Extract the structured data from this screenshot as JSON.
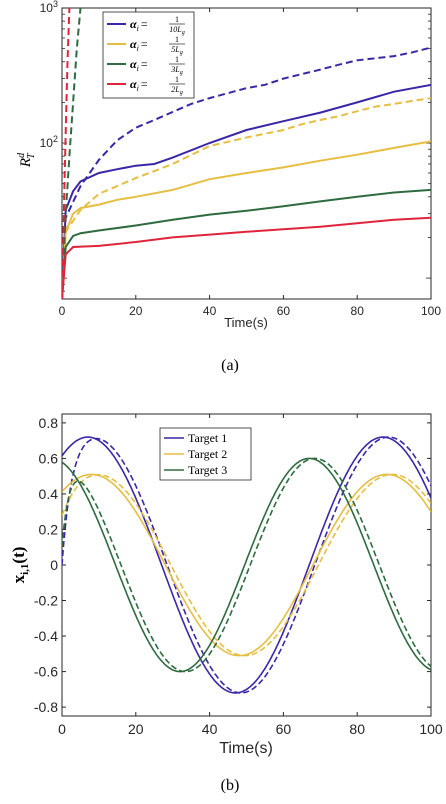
{
  "chart_data": [
    {
      "type": "line",
      "caption": "(a)",
      "xlabel": "Time(s)",
      "ylabel": "R_T^d",
      "yscale": "log",
      "xlim": [
        0,
        100
      ],
      "ylim": [
        7,
        1000
      ],
      "xticks": [
        0,
        20,
        40,
        60,
        80,
        100
      ],
      "yticks": [
        {
          "value": 100,
          "base": "10",
          "exp": "2"
        },
        {
          "value": 1000,
          "base": "10",
          "exp": "3"
        }
      ],
      "legend_position": "top-left",
      "series": [
        {
          "name": "α_i = 1/(10 L_g)",
          "legend": {
            "alpha": "α",
            "sub": "i",
            "eq": "=",
            "num": "1",
            "den": "10L",
            "densub": "g"
          },
          "color": "#3B26A8",
          "solid": [
            [
              0,
              7
            ],
            [
              1,
              32
            ],
            [
              3,
              44
            ],
            [
              5,
              52
            ],
            [
              10,
              60
            ],
            [
              15,
              64
            ],
            [
              20,
              68
            ],
            [
              25,
              70
            ],
            [
              30,
              78
            ],
            [
              40,
              100
            ],
            [
              50,
              125
            ],
            [
              60,
              145
            ],
            [
              70,
              168
            ],
            [
              80,
              200
            ],
            [
              90,
              240
            ],
            [
              100,
              270
            ]
          ],
          "dashed": [
            [
              0,
              7
            ],
            [
              1,
              28
            ],
            [
              5,
              48
            ],
            [
              10,
              75
            ],
            [
              15,
              105
            ],
            [
              20,
              130
            ],
            [
              25,
              148
            ],
            [
              30,
              170
            ],
            [
              35,
              195
            ],
            [
              40,
              215
            ],
            [
              50,
              255
            ],
            [
              55,
              270
            ],
            [
              60,
              300
            ],
            [
              70,
              350
            ],
            [
              75,
              380
            ],
            [
              80,
              410
            ],
            [
              90,
              440
            ],
            [
              95,
              470
            ],
            [
              100,
              510
            ]
          ]
        },
        {
          "name": "α_i = 1/(5 L_g)",
          "legend": {
            "alpha": "α",
            "sub": "i",
            "eq": "=",
            "num": "1",
            "den": "5L",
            "densub": "g"
          },
          "color": "#E5BE42",
          "solid": [
            [
              0,
              7
            ],
            [
              1,
              22
            ],
            [
              3,
              30
            ],
            [
              5,
              33
            ],
            [
              10,
              35
            ],
            [
              15,
              38
            ],
            [
              20,
              40
            ],
            [
              30,
              45
            ],
            [
              40,
              54
            ],
            [
              50,
              60
            ],
            [
              60,
              66
            ],
            [
              70,
              74
            ],
            [
              80,
              82
            ],
            [
              90,
              92
            ],
            [
              100,
              103
            ]
          ],
          "dashed": [
            [
              0,
              7
            ],
            [
              1,
              22
            ],
            [
              5,
              32
            ],
            [
              10,
              42
            ],
            [
              20,
              55
            ],
            [
              30,
              70
            ],
            [
              40,
              95
            ],
            [
              50,
              110
            ],
            [
              60,
              125
            ],
            [
              65,
              138
            ],
            [
              70,
              148
            ],
            [
              75,
              158
            ],
            [
              80,
              172
            ],
            [
              85,
              186
            ],
            [
              90,
              195
            ],
            [
              95,
              205
            ],
            [
              100,
              215
            ]
          ]
        },
        {
          "name": "α_i = 1/(3 L_g)",
          "legend": {
            "alpha": "α",
            "sub": "i",
            "eq": "=",
            "num": "1",
            "den": "3L",
            "densub": "g"
          },
          "color": "#2E6B40",
          "solid": [
            [
              0,
              7
            ],
            [
              1,
              17
            ],
            [
              3,
              20.5
            ],
            [
              5,
              21.5
            ],
            [
              10,
              22.5
            ],
            [
              20,
              24.5
            ],
            [
              30,
              27
            ],
            [
              40,
              29.5
            ],
            [
              50,
              31.5
            ],
            [
              60,
              34
            ],
            [
              70,
              37
            ],
            [
              80,
              40
            ],
            [
              90,
              43
            ],
            [
              100,
              45
            ]
          ],
          "dashed": [
            [
              0,
              7
            ],
            [
              1,
              30
            ],
            [
              2,
              80
            ],
            [
              3,
              200
            ],
            [
              4,
              500
            ],
            [
              5,
              1000
            ]
          ]
        },
        {
          "name": "α_i = 1/(2 L_g)",
          "legend": {
            "alpha": "α",
            "sub": "i",
            "eq": "=",
            "num": "1",
            "den": "2L",
            "densub": "g"
          },
          "color": "#E0243C",
          "solid": [
            [
              0,
              7
            ],
            [
              1,
              15
            ],
            [
              3,
              17
            ],
            [
              10,
              17.3
            ],
            [
              20,
              18.5
            ],
            [
              30,
              20
            ],
            [
              40,
              21
            ],
            [
              50,
              22
            ],
            [
              60,
              23
            ],
            [
              70,
              24
            ],
            [
              80,
              25.5
            ],
            [
              90,
              27
            ],
            [
              100,
              28
            ]
          ],
          "dashed": [
            [
              0,
              7
            ],
            [
              0.5,
              30
            ],
            [
              1,
              120
            ],
            [
              1.5,
              400
            ],
            [
              2,
              1000
            ]
          ]
        }
      ]
    },
    {
      "type": "line",
      "caption": "(b)",
      "xlabel": "Time(s)",
      "ylabel": "x_{i,1}(t)",
      "xlim": [
        0,
        100
      ],
      "ylim": [
        -0.85,
        0.85
      ],
      "xticks": [
        0,
        20,
        40,
        60,
        80,
        100
      ],
      "yticks": [
        -0.8,
        -0.6,
        -0.4,
        -0.2,
        0,
        0.2,
        0.4,
        0.6,
        0.8
      ],
      "legend_position": "top-center",
      "series": [
        {
          "name": "Target 1",
          "color": "#3B26A8",
          "amplitude": 0.72,
          "period": 80,
          "peak_time": 7,
          "dashed_delay": 1.5,
          "init_dashed": 0.0
        },
        {
          "name": "Target 2",
          "color": "#E5BE42",
          "amplitude": 0.51,
          "period": 80,
          "peak_time": 8,
          "dashed_delay": 1.5,
          "init_dashed": 0.28
        },
        {
          "name": "Target 3",
          "color": "#2E6B40",
          "amplitude": 0.6,
          "period": 70,
          "peak_time": -3,
          "dashed_delay": 1.5,
          "init_dashed": 0.1
        }
      ]
    }
  ]
}
